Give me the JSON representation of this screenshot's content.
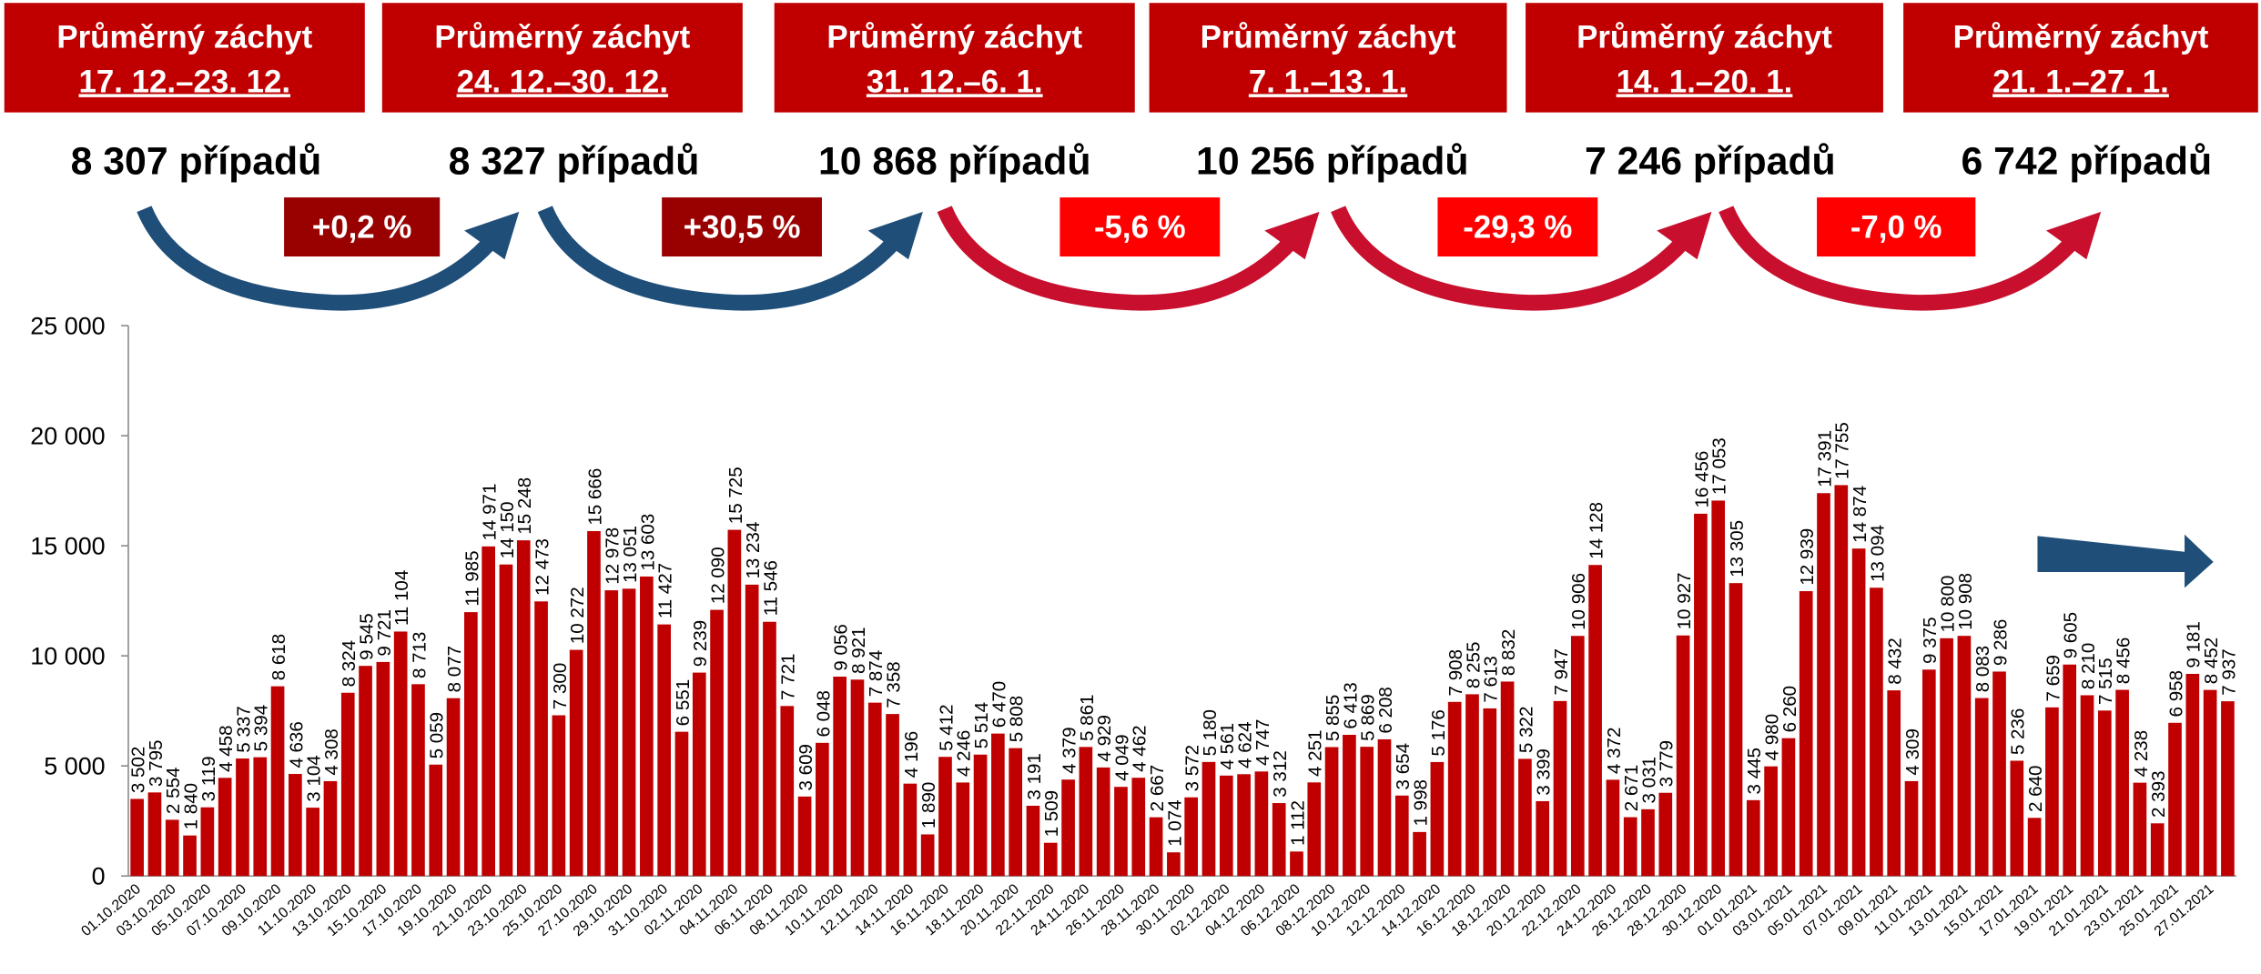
{
  "summary": {
    "weeks": [
      {
        "title": "Průměrný záchyt",
        "period": "17. 12.–23. 12.",
        "cases": "8 307 případů"
      },
      {
        "title": "Průměrný záchyt",
        "period": "24. 12.–30. 12.",
        "cases": "8 327 případů"
      },
      {
        "title": "Průměrný záchyt",
        "period": "31. 12.–6. 1.",
        "cases": "10 868 případů"
      },
      {
        "title": "Průměrný záchyt",
        "period": "7. 1.–13. 1.",
        "cases": "10 256 případů"
      },
      {
        "title": "Průměrný záchyt",
        "period": "14. 1.–20. 1.",
        "cases": "7 246 případů"
      },
      {
        "title": "Průměrný záchyt",
        "period": "21. 1.–27. 1.",
        "cases": "6 742 případů"
      }
    ],
    "changes": [
      "+0,2 %",
      "+30,5 %",
      "-5,6 %",
      "-29,3 %",
      "-7,0 %"
    ]
  },
  "chart_data": {
    "type": "bar",
    "color": "#c00000",
    "ylim": [
      0,
      25000
    ],
    "yticks": [
      0,
      {
        "value": 5000,
        "label": "5 000"
      },
      {
        "value": 10000,
        "label": "10 000"
      },
      {
        "value": 15000,
        "label": "15 000"
      },
      {
        "value": 20000,
        "label": "20 000"
      },
      {
        "value": 25000,
        "label": "25 000"
      }
    ],
    "categories": [
      "01.10.2020",
      null,
      "03.10.2020",
      null,
      "05.10.2020",
      null,
      "07.10.2020",
      null,
      "09.10.2020",
      null,
      "11.10.2020",
      null,
      "13.10.2020",
      null,
      "15.10.2020",
      null,
      "17.10.2020",
      null,
      "19.10.2020",
      null,
      "21.10.2020",
      null,
      "23.10.2020",
      null,
      "25.10.2020",
      null,
      "27.10.2020",
      null,
      "29.10.2020",
      null,
      "31.10.2020",
      null,
      "02.11.2020",
      null,
      "04.11.2020",
      null,
      "06.11.2020",
      null,
      "08.11.2020",
      null,
      "10.11.2020",
      null,
      "12.11.2020",
      null,
      "14.11.2020",
      null,
      "16.11.2020",
      null,
      "18.11.2020",
      null,
      "20.11.2020",
      null,
      "22.11.2020",
      null,
      "24.11.2020",
      null,
      "26.11.2020",
      null,
      "28.11.2020",
      null,
      "30.11.2020",
      null,
      "02.12.2020",
      null,
      "04.12.2020",
      null,
      "06.12.2020",
      null,
      "08.12.2020",
      null,
      "10.12.2020",
      null,
      "12.12.2020",
      null,
      "14.12.2020",
      null,
      "16.12.2020",
      null,
      "18.12.2020",
      null,
      "20.12.2020",
      null,
      "22.12.2020",
      null,
      "24.12.2020",
      null,
      "26.12.2020",
      null,
      "28.12.2020",
      null,
      "30.12.2020",
      null,
      "01.01.2021",
      null,
      "03.01.2021",
      null,
      "05.01.2021",
      null,
      "07.01.2021",
      null,
      "09.01.2021",
      null,
      "11.01.2021",
      null,
      "13.01.2021",
      null,
      "15.01.2021",
      null,
      "17.01.2021",
      null,
      "19.01.2021",
      null,
      "21.01.2021",
      null,
      "23.01.2021",
      null,
      "25.01.2021",
      null,
      "27.01.2021",
      null
    ],
    "values": [
      3502,
      3795,
      2554,
      1840,
      3119,
      4458,
      5337,
      5394,
      8618,
      4636,
      3104,
      4308,
      8324,
      9545,
      9721,
      11104,
      8713,
      5059,
      8077,
      11985,
      14971,
      14150,
      15248,
      12473,
      7300,
      10272,
      15666,
      12978,
      13051,
      13603,
      11427,
      6551,
      9239,
      12090,
      15725,
      13234,
      11546,
      7721,
      3609,
      6048,
      9056,
      8921,
      7874,
      7358,
      4196,
      1890,
      5412,
      4246,
      5514,
      6470,
      5808,
      3191,
      1509,
      4379,
      5861,
      4929,
      4049,
      4462,
      2667,
      1074,
      3572,
      5180,
      4561,
      4624,
      4747,
      3312,
      1112,
      4251,
      5855,
      6413,
      5869,
      6208,
      3654,
      1998,
      5176,
      7908,
      8255,
      7613,
      8832,
      5322,
      3399,
      7947,
      10906,
      14128,
      4372,
      2671,
      3031,
      3779,
      10927,
      16456,
      17053,
      13305,
      3445,
      4980,
      6260,
      12939,
      17391,
      17755,
      14874,
      13094,
      8432,
      4309,
      9375,
      10800,
      10908,
      8083,
      9286,
      5236,
      2640,
      7659,
      9605,
      8210,
      7515,
      8456,
      4238,
      2393,
      6958,
      9181,
      8452,
      7937
    ],
    "value_labels": [
      "3 502",
      "3 795",
      "2 554",
      "1 840",
      "3 119",
      "4 458",
      "5 337",
      "5 394",
      "8 618",
      "4 636",
      "3 104",
      "4 308",
      "8 324",
      "9 545",
      "9 721",
      "11 104",
      "8 713",
      "5 059",
      "8 077",
      "11 985",
      "14 971",
      "14 150",
      "15 248",
      "12 473",
      "7 300",
      "10 272",
      "15 666",
      "12 978",
      "13 051",
      "13 603",
      "11 427",
      "6 551",
      "9 239",
      "12 090",
      "15 725",
      "13 234",
      "11 546",
      "7 721",
      "3 609",
      "6 048",
      "9 056",
      "8 921",
      "7 874",
      "7 358",
      "4 196",
      "1 890",
      "5 412",
      "4 246",
      "5 514",
      "6 470",
      "5 808",
      "3 191",
      "1 509",
      "4 379",
      "5 861",
      "4 929",
      "4 049",
      "4 462",
      "2 667",
      "1 074",
      "3 572",
      "5 180",
      "4 561",
      "4 624",
      "4 747",
      "3 312",
      "1 112",
      "4 251",
      "5 855",
      "6 413",
      "5 869",
      "6 208",
      "3 654",
      "1 998",
      "5 176",
      "7 908",
      "8 255",
      "7 613",
      "8 832",
      "5 322",
      "3 399",
      "7 947",
      "10 906",
      "14 128",
      "4 372",
      "2 671",
      "3 031",
      "3 779",
      "10 927",
      "16 456",
      "17 053",
      "13 305",
      "3 445",
      "4 980",
      "6 260",
      "12 939",
      "17 391",
      "17 755",
      "14 874",
      "13 094",
      "8 432",
      "4 309",
      "9 375",
      "10 800",
      "10 908",
      "8 083",
      "9 286",
      "5 236",
      "2 640",
      "7 659",
      "9 605",
      "8 210",
      "7 515",
      "8 456",
      "4 238",
      "2 393",
      "6 958",
      "9 181",
      "8 452",
      "7 937"
    ]
  }
}
